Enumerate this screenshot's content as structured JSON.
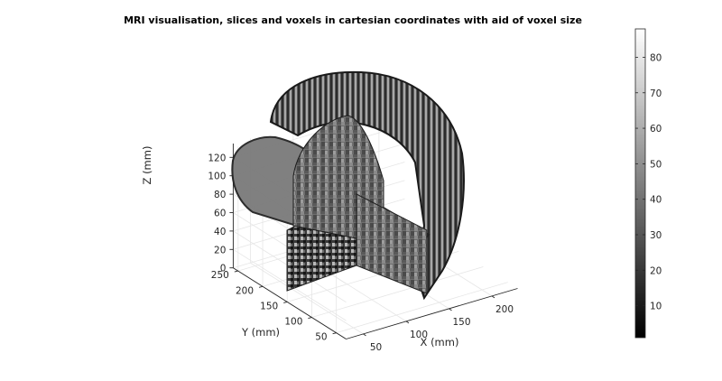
{
  "chart_data": {
    "type": "volume-slices-3d",
    "title": "MRI visualisation, slices and voxels in cartesian coordinates with aid of voxel size",
    "xlabel": "X (mm)",
    "ylabel": "Y (mm)",
    "zlabel": "Z (mm)",
    "x_ticks": [
      50,
      100,
      150,
      200
    ],
    "y_ticks": [
      50,
      100,
      150,
      200,
      250
    ],
    "z_ticks": [
      0,
      20,
      40,
      60,
      80,
      100,
      120
    ],
    "xlim": [
      30,
      230
    ],
    "ylim": [
      30,
      260
    ],
    "zlim": [
      0,
      135
    ],
    "grid": true,
    "colormap": "gray",
    "colorbar": {
      "ticks": [
        10,
        20,
        30,
        40,
        50,
        60,
        70,
        80
      ],
      "limits": [
        1,
        88
      ],
      "placement": "right"
    }
  }
}
